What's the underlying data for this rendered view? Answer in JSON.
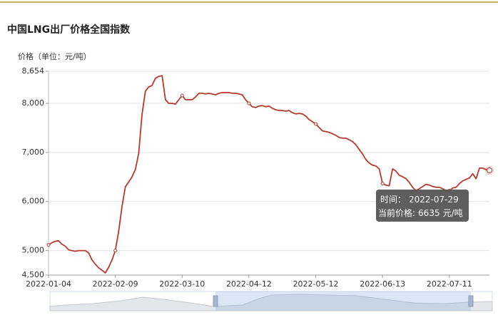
{
  "chart_data": {
    "type": "line",
    "title": "中国LNG出厂价格全国指数",
    "y_label": "价格（单位：元/吨）",
    "categories": [
      "2022-01-04",
      null,
      null,
      null,
      null,
      null,
      null,
      null,
      null,
      null,
      null,
      null,
      null,
      null,
      null,
      null,
      null,
      null,
      null,
      null,
      "2022-02-09",
      null,
      null,
      null,
      null,
      null,
      null,
      null,
      null,
      null,
      null,
      null,
      null,
      null,
      null,
      null,
      null,
      null,
      null,
      null,
      "2022-03-10",
      null,
      null,
      null,
      null,
      null,
      null,
      null,
      null,
      null,
      null,
      null,
      null,
      null,
      null,
      null,
      null,
      null,
      null,
      null,
      "2022-04-12",
      null,
      null,
      null,
      null,
      null,
      null,
      null,
      null,
      null,
      null,
      null,
      null,
      null,
      null,
      null,
      null,
      null,
      null,
      null,
      "2022-05-12",
      null,
      null,
      null,
      null,
      null,
      null,
      null,
      null,
      null,
      null,
      null,
      null,
      null,
      null,
      null,
      null,
      null,
      null,
      null,
      "2022-06-13",
      null,
      null,
      null,
      null,
      null,
      null,
      null,
      null,
      null,
      null,
      null,
      null,
      null,
      null,
      null,
      null,
      null,
      null,
      null,
      "2022-07-11",
      null,
      null,
      null,
      null,
      null,
      null,
      null,
      null,
      null,
      null,
      null,
      null
    ],
    "series": [
      {
        "color": "#b8392c",
        "values": [
          5115,
          5160,
          5190,
          5200,
          5130,
          5090,
          5015,
          5000,
          4985,
          5000,
          5000,
          5000,
          4955,
          4810,
          4725,
          4650,
          4600,
          4545,
          4660,
          4810,
          5000,
          5390,
          5900,
          6300,
          6400,
          6500,
          6650,
          6985,
          7780,
          8250,
          8335,
          8365,
          8510,
          8550,
          8565,
          8075,
          8000,
          8000,
          7985,
          8075,
          8160,
          8075,
          8075,
          8075,
          8130,
          8205,
          8205,
          8190,
          8205,
          8190,
          8175,
          8205,
          8220,
          8220,
          8220,
          8205,
          8205,
          8190,
          8175,
          8075,
          8000,
          7930,
          7915,
          7945,
          7955,
          7930,
          7945,
          7900,
          7870,
          7855,
          7855,
          7840,
          7855,
          7810,
          7785,
          7795,
          7785,
          7740,
          7670,
          7625,
          7580,
          7510,
          7440,
          7425,
          7410,
          7380,
          7350,
          7305,
          7290,
          7290,
          7260,
          7220,
          7160,
          7060,
          6970,
          6855,
          6785,
          6740,
          6725,
          6665,
          6365,
          6335,
          6320,
          6665,
          6620,
          6535,
          6505,
          6465,
          6390,
          6290,
          6220,
          6260,
          6305,
          6350,
          6335,
          6305,
          6290,
          6290,
          6260,
          6220,
          6220,
          6275,
          6290,
          6365,
          6420,
          6450,
          6480,
          6565,
          6465,
          6680,
          6680,
          6650,
          6635
        ]
      }
    ],
    "ylim": [
      4500,
      8654
    ],
    "yticks": [
      {
        "value": 4500,
        "label": "4,500"
      },
      {
        "value": 5000,
        "label": "5,000"
      },
      {
        "value": 6000,
        "label": "6,000"
      },
      {
        "value": 7000,
        "label": "7,000"
      },
      {
        "value": 8000,
        "label": "8,000"
      },
      {
        "value": 8654,
        "label": "8,654"
      }
    ],
    "grid": true,
    "tooltip": {
      "time_label": "时间：",
      "time": "2022-07-29",
      "price_label": "当前价格:",
      "unit": "元/吨"
    }
  }
}
